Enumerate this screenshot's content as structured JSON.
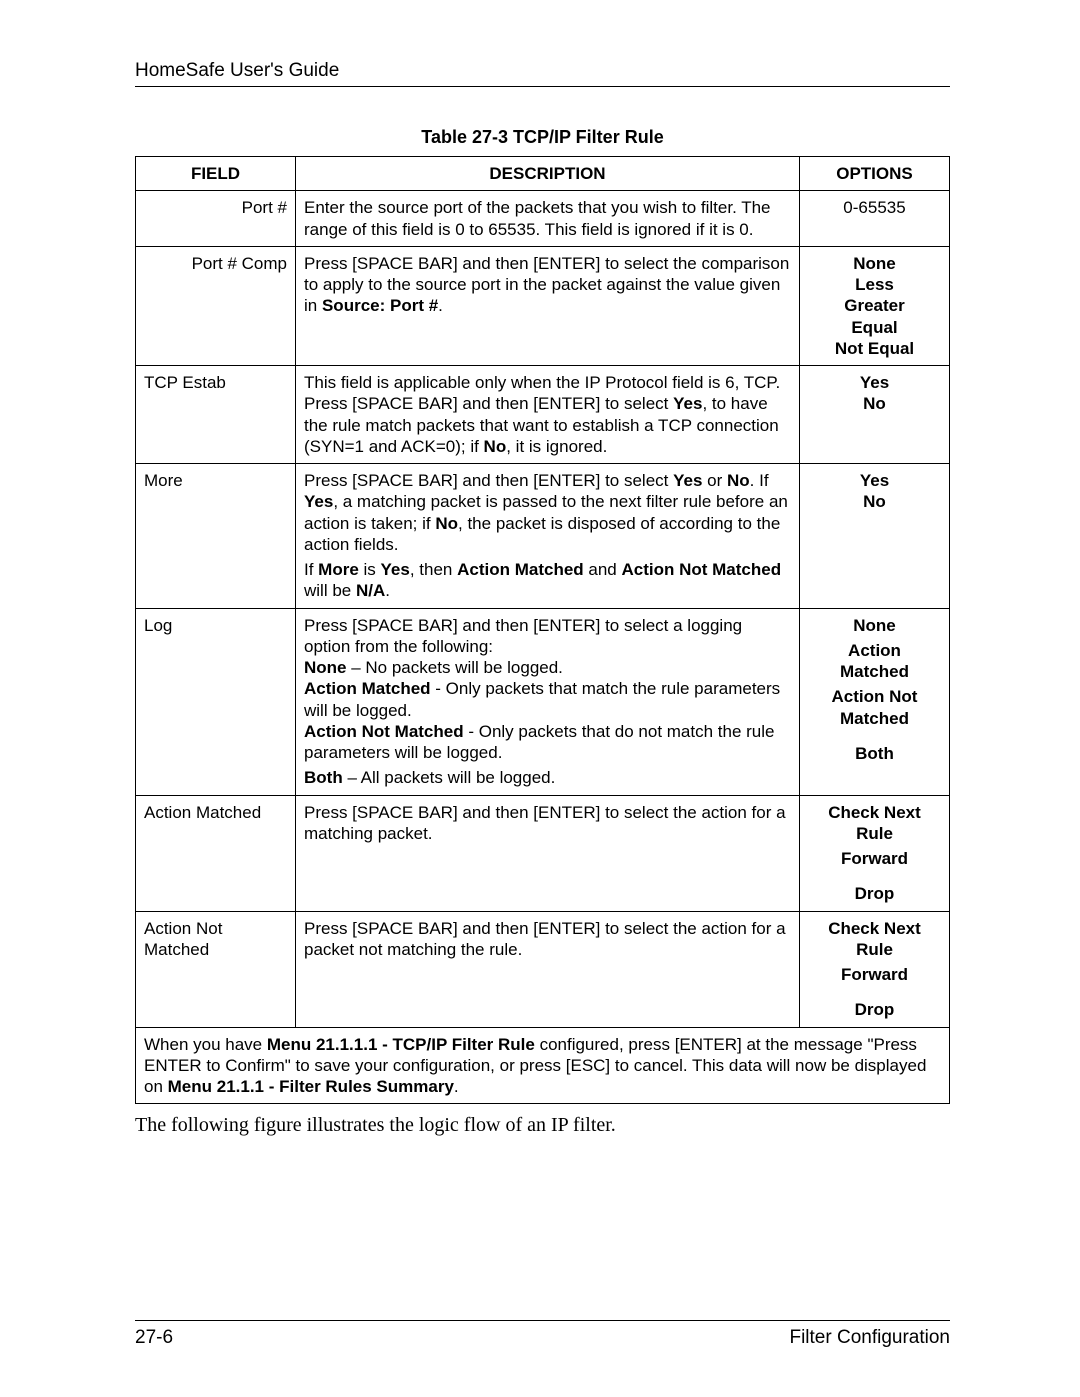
{
  "header": {
    "title": "HomeSafe User's Guide"
  },
  "table": {
    "caption": "Table 27-3 TCP/IP Filter Rule",
    "columns": [
      "FIELD",
      "DESCRIPTION",
      "OPTIONS"
    ],
    "rows": [
      {
        "field": "Port #",
        "field_align": "right",
        "desc_html": "Enter the source port of the packets that you wish to filter. The range of this field is 0 to 65535. This field is ignored if it is 0.",
        "options": [
          "0-65535"
        ],
        "options_bold": false
      },
      {
        "field": "Port # Comp",
        "field_align": "right",
        "desc_html": "Press [SPACE BAR] and then [ENTER] to select the comparison to apply to the source port in the packet against the value given in <b>Source: Port #</b>.",
        "options": [
          "None",
          "Less",
          "Greater",
          "Equal",
          "Not Equal"
        ],
        "options_bold": true
      },
      {
        "field": "TCP Estab",
        "field_align": "left",
        "desc_html": "This field is applicable only when the IP Protocol field is 6, TCP. Press [SPACE BAR] and then [ENTER] to select <b>Yes</b>, to have the rule match packets that want to establish a TCP connection (SYN=1 and ACK=0); if <b>No</b>, it is ignored.",
        "options": [
          "Yes",
          "No"
        ],
        "options_bold": true
      },
      {
        "field": "More",
        "field_align": "left",
        "desc_html": "<p>Press [SPACE BAR] and then [ENTER] to select <b>Yes</b> or <b>No</b>. If <b>Yes</b>, a matching packet is passed to the next filter rule before an action is taken; if <b>No</b>, the packet is disposed of according to the action fields.</p><p>If <b>More</b> is <b>Yes</b>, then <b>Action Matched</b> and <b>Action Not Matched</b> will be <b>N/A</b>.</p>",
        "options": [
          "Yes",
          "No"
        ],
        "options_bold": true
      },
      {
        "field": "Log",
        "field_align": "left",
        "desc_html": "<p>Press [SPACE BAR] and then [ENTER] to select a logging option from the following:<br><b>None</b> – No packets will be logged.<br><b>Action Matched</b> - Only packets that match the rule parameters will be logged.<br><b>Action Not Matched</b> - Only packets that do not match the rule parameters will be logged.</p><p><b>Both</b> – All packets will be logged.</p>",
        "options": [
          "None",
          "Action Matched",
          "Action Not Matched",
          "Both"
        ],
        "options_bold": true,
        "options_blocks": [
          [
            "None"
          ],
          [
            "Action",
            "Matched"
          ],
          [
            "Action Not",
            "Matched"
          ],
          [
            "Both"
          ]
        ]
      },
      {
        "field": "Action Matched",
        "field_align": "left",
        "desc_html": "Press [SPACE BAR] and then [ENTER] to select the action for a matching packet.",
        "options": [
          "Check Next Rule",
          "Forward",
          "Drop"
        ],
        "options_bold": true,
        "options_blocks": [
          [
            "Check Next",
            "Rule"
          ],
          [
            "Forward"
          ],
          [
            "Drop"
          ]
        ]
      },
      {
        "field": "Action Not Matched",
        "field_align": "left",
        "desc_html": "Press [SPACE BAR] and then [ENTER] to select the action for a packet not matching the rule.",
        "options": [
          "Check Next Rule",
          "Forward",
          "Drop"
        ],
        "options_bold": true,
        "options_blocks": [
          [
            "Check Next",
            "Rule"
          ],
          [
            "Forward"
          ],
          [
            "Drop"
          ]
        ]
      }
    ],
    "footer_html": "When you have <b>Menu 21.1.1.1 - TCP/IP Filter Rule</b> configured, press [ENTER] at the message \"Press ENTER to Confirm\" to save your configuration, or press [ESC] to cancel. This data will now be displayed on <b>Menu 21.1.1 - Filter Rules Summary</b>."
  },
  "body_paragraph": "The following figure illustrates the logic flow of an IP filter.",
  "footer": {
    "page": "27-6",
    "section": "Filter Configuration"
  }
}
